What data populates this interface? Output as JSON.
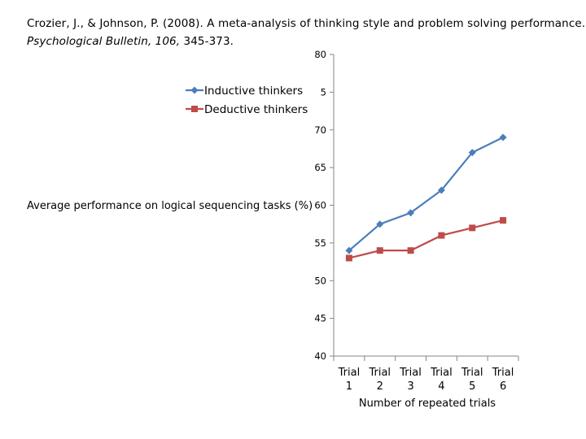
{
  "citation": {
    "line1": "Crozier, J., & Johnson, P. (2008). A meta-analysis of thinking style and problem solving performance.",
    "journal": "Psychological Bulletin, 106,",
    "pages": " 345-373."
  },
  "chart_data": {
    "type": "line",
    "categories": [
      [
        "Trial",
        "1"
      ],
      [
        "Trial",
        "2"
      ],
      [
        "Trial",
        "3"
      ],
      [
        "Trial",
        "4"
      ],
      [
        "Trial",
        "5"
      ],
      [
        "Trial",
        "6"
      ]
    ],
    "y_ticks": [
      40,
      45,
      50,
      55,
      60,
      65,
      70,
      "5",
      80
    ],
    "ylim": [
      40,
      80
    ],
    "xlabel": "Number of repeated trials",
    "ylabel": "Average performance on logical sequencing tasks (%)",
    "grid": false,
    "legend_position": "top-left, overlapping the y-axis tick labels",
    "series": [
      {
        "name": "Inductive thinkers",
        "color": "#4a7ebb",
        "marker": "diamond",
        "values": [
          54,
          57.5,
          59,
          62,
          67,
          69
        ]
      },
      {
        "name": "Deductive thinkers",
        "color": "#be4b48",
        "marker": "square",
        "values": [
          53,
          54,
          54,
          56,
          57,
          58
        ]
      }
    ]
  }
}
